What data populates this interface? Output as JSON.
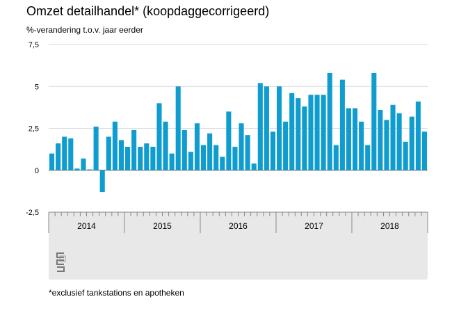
{
  "title": "Omzet detailhandel* (koopdaggecorrigeerd)",
  "subtitle": "%-verandering t.o.v. jaar eerder",
  "footnote": "*exclusief tankstations en apotheken",
  "colors": {
    "bar": "#0f9ccf",
    "panel": "#e8e8e8",
    "grid": "#d9d9d9",
    "axis": "#555555"
  },
  "logo": {
    "icon": "cbs-logo-icon"
  },
  "chart_data": {
    "type": "bar",
    "ylim": [
      -2.5,
      7.5
    ],
    "yticks": [
      {
        "value": -2.5,
        "label": "-2,5"
      },
      {
        "value": 0,
        "label": "0"
      },
      {
        "value": 2.5,
        "label": "2,5"
      },
      {
        "value": 5,
        "label": "5"
      },
      {
        "value": 7.5,
        "label": "7,5"
      }
    ],
    "grid": true,
    "years": [
      "2014",
      "2015",
      "2016",
      "2017",
      "2018"
    ],
    "months_per_year": 12,
    "series": [
      {
        "values": [
          1.0,
          1.6,
          2.0,
          1.9,
          0.1,
          0.7,
          0.05,
          2.6,
          -1.3,
          2.0,
          2.9,
          1.8,
          1.4,
          2.4,
          1.4,
          1.6,
          1.4,
          4.0,
          2.9,
          1.0,
          5.0,
          2.4,
          1.1,
          2.8,
          1.5,
          2.2,
          1.5,
          0.8,
          3.5,
          1.4,
          2.8,
          2.1,
          0.4,
          5.2,
          5.0,
          2.3,
          5.0,
          2.9,
          4.6,
          4.3,
          3.8,
          4.5,
          4.5,
          4.5,
          5.8,
          1.5,
          5.4,
          3.7,
          3.7,
          2.9,
          1.5,
          5.8,
          3.6,
          3.0,
          3.9,
          3.4,
          1.7,
          3.2,
          4.1,
          2.3
        ]
      }
    ]
  }
}
